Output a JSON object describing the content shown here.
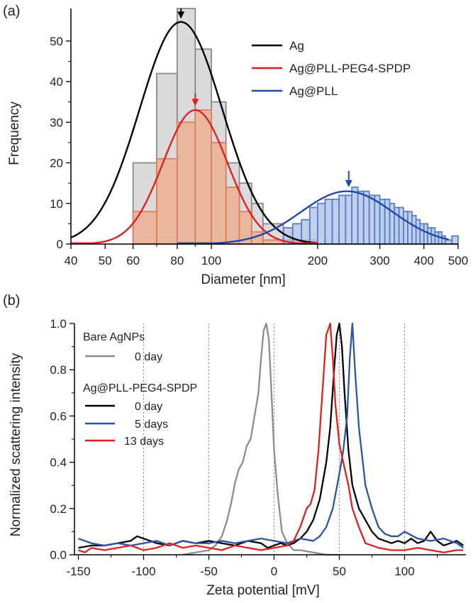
{
  "chart_data": [
    {
      "panel": "(a)",
      "type": "bar",
      "xscale": "log",
      "xlim": [
        40,
        500
      ],
      "ylim": [
        0,
        58
      ],
      "xlabel": "Diameter [nm]",
      "ylabel": "Frequency",
      "xticks": [
        40,
        50,
        60,
        80,
        100,
        200,
        300,
        400,
        500
      ],
      "xtick_labels": [
        "40",
        "50",
        "60",
        "80",
        "100",
        "200",
        "300",
        "400",
        "500"
      ],
      "yticks": [
        0,
        10,
        20,
        30,
        40,
        50
      ],
      "ytick_labels": [
        "0",
        "10",
        "20",
        "30",
        "40",
        "50"
      ],
      "legend_position": "top-right",
      "histograms": [
        {
          "name": "Ag",
          "color": "#8a8a8a",
          "fill": "#cfcfcf",
          "edges": [
            40,
            50,
            60,
            70,
            80,
            90,
            100,
            110,
            120,
            130,
            140,
            160,
            200
          ],
          "values": [
            0,
            0,
            20,
            42,
            58,
            48,
            35,
            20,
            15,
            10,
            5,
            1
          ]
        },
        {
          "name": "Ag@PLL-PEG4-SPDP",
          "color": "#d9825e",
          "fill": "#eea98a",
          "edges": [
            40,
            50,
            60,
            70,
            80,
            90,
            100,
            110,
            120,
            130,
            140,
            160,
            200
          ],
          "values": [
            0,
            0,
            8,
            21,
            30,
            33,
            25,
            14,
            8,
            3,
            1,
            1
          ]
        },
        {
          "name": "Ag@PLL",
          "color": "#5a7fc4",
          "fill": "#a9bfe6",
          "edges": [
            160,
            170,
            180,
            190,
            200,
            210,
            220,
            230,
            240,
            250,
            260,
            270,
            280,
            290,
            300,
            310,
            320,
            330,
            340,
            350,
            360,
            370,
            380,
            390,
            400,
            410,
            420,
            430,
            440,
            450,
            460,
            480,
            500
          ],
          "values": [
            4,
            5,
            6,
            9,
            10,
            11,
            11,
            12,
            12,
            14,
            13,
            13,
            12,
            12,
            11,
            11,
            10,
            9,
            9,
            8,
            8,
            7,
            6,
            5,
            5,
            4,
            4,
            3,
            3,
            2,
            1,
            2
          ]
        }
      ],
      "series": [
        {
          "name": "Ag",
          "color": "#000000",
          "fit": "lognormal",
          "mode": 82,
          "peak": 54.7,
          "sigma": 0.27,
          "x_range": [
            40,
            200
          ]
        },
        {
          "name": "Ag@PLL-PEG4-SPDP",
          "color": "#e02020",
          "fit": "lognormal",
          "mode": 90,
          "peak": 33,
          "sigma": 0.21,
          "x_range": [
            40,
            200
          ]
        },
        {
          "name": "Ag@PLL",
          "color": "#1f4aa8",
          "fit": "lognormal",
          "mode": 242,
          "peak": 13,
          "sigma": 0.3,
          "x_range": [
            80,
            470
          ]
        }
      ],
      "arrows": [
        {
          "x": 82,
          "y_top": 58,
          "y_tip": 55.5,
          "color": "#000000"
        },
        {
          "x": 90,
          "y_top": 37,
          "y_tip": 34,
          "color": "#e02020"
        },
        {
          "x": 245,
          "y_top": 18,
          "y_tip": 14,
          "color": "#1f4aa8"
        }
      ]
    },
    {
      "panel": "(b)",
      "type": "line",
      "xlim": [
        -153,
        147
      ],
      "ylim": [
        0,
        1.0
      ],
      "xlabel": "Zeta potential [mV]",
      "ylabel": "Normalized scattering intensity",
      "xticks": [
        -150,
        -100,
        -50,
        0,
        50,
        100
      ],
      "xtick_labels": [
        "-150",
        "-100",
        "-50",
        "0",
        "50",
        "100"
      ],
      "yticks": [
        0,
        0.2,
        0.4,
        0.6,
        0.8,
        1.0
      ],
      "ytick_labels": [
        "0.0",
        "0.2",
        "0.4",
        "0.6",
        "0.8",
        "1.0"
      ],
      "gridlines_x": [
        -100,
        -50,
        0,
        50,
        100
      ],
      "legend_position": "top-left",
      "legend_groups": [
        {
          "title": "Bare AgNPs",
          "entries": [
            "0 day"
          ]
        },
        {
          "title": "Ag@PLL-PEG4-SPDP",
          "entries": [
            "0 day",
            "5 days",
            "13 days"
          ]
        }
      ],
      "series": [
        {
          "name": "Bare AgNPs 0 day",
          "label": "0 day",
          "color": "#8c8c8c",
          "x": [
            -70,
            -60,
            -50,
            -45,
            -40,
            -36,
            -33,
            -30,
            -27,
            -24,
            -21,
            -18,
            -15,
            -12,
            -10,
            -8,
            -6,
            -4,
            -2,
            0,
            3,
            6,
            10,
            15,
            20,
            30,
            40,
            50
          ],
          "y": [
            0.0,
            0.01,
            0.02,
            0.04,
            0.08,
            0.15,
            0.22,
            0.31,
            0.37,
            0.4,
            0.47,
            0.5,
            0.6,
            0.7,
            0.85,
            0.97,
            1.0,
            0.93,
            0.7,
            0.45,
            0.25,
            0.1,
            0.05,
            0.02,
            0.02,
            0.01,
            0.0,
            0.0
          ]
        },
        {
          "name": "Ag@PLL-PEG4-SPDP 0 day",
          "label": "0 day",
          "color": "#000000",
          "x": [
            -150,
            -140,
            -130,
            -120,
            -110,
            -105,
            -100,
            -95,
            -90,
            -80,
            -70,
            -60,
            -50,
            -40,
            -30,
            -20,
            -10,
            -5,
            0,
            5,
            10,
            15,
            20,
            25,
            30,
            35,
            40,
            43,
            46,
            48,
            50,
            52,
            54,
            57,
            60,
            65,
            70,
            75,
            80,
            85,
            90,
            95,
            100,
            105,
            110,
            115,
            120,
            125,
            130,
            135,
            140,
            145
          ],
          "y": [
            0.03,
            0.04,
            0.04,
            0.05,
            0.06,
            0.08,
            0.07,
            0.06,
            0.05,
            0.04,
            0.06,
            0.05,
            0.06,
            0.05,
            0.04,
            0.06,
            0.05,
            0.03,
            0.04,
            0.05,
            0.04,
            0.05,
            0.07,
            0.1,
            0.15,
            0.24,
            0.4,
            0.55,
            0.8,
            0.95,
            1.0,
            0.9,
            0.7,
            0.45,
            0.3,
            0.2,
            0.15,
            0.1,
            0.07,
            0.06,
            0.05,
            0.06,
            0.05,
            0.07,
            0.05,
            0.06,
            0.1,
            0.06,
            0.04,
            0.05,
            0.06,
            0.04
          ]
        },
        {
          "name": "Ag@PLL-PEG4-SPDP 5 days",
          "label": "5 days",
          "color": "#2c54a6",
          "x": [
            -150,
            -140,
            -130,
            -120,
            -110,
            -100,
            -90,
            -80,
            -70,
            -60,
            -50,
            -40,
            -30,
            -20,
            -10,
            0,
            10,
            20,
            30,
            35,
            40,
            45,
            50,
            53,
            56,
            58,
            60,
            62,
            65,
            70,
            75,
            80,
            85,
            90,
            95,
            100,
            110,
            120,
            130,
            140,
            145
          ],
          "y": [
            0.07,
            0.05,
            0.04,
            0.05,
            0.04,
            0.05,
            0.06,
            0.04,
            0.06,
            0.05,
            0.05,
            0.06,
            0.05,
            0.06,
            0.07,
            0.06,
            0.05,
            0.07,
            0.06,
            0.08,
            0.12,
            0.2,
            0.35,
            0.45,
            0.6,
            0.85,
            1.0,
            0.8,
            0.55,
            0.3,
            0.2,
            0.12,
            0.09,
            0.08,
            0.08,
            0.1,
            0.07,
            0.06,
            0.07,
            0.05,
            0.03
          ]
        },
        {
          "name": "Ag@PLL-PEG4-SPDP 13 days",
          "label": "13 days",
          "color": "#e02020",
          "x": [
            -150,
            -145,
            -140,
            -130,
            -120,
            -110,
            -100,
            -90,
            -80,
            -70,
            -60,
            -50,
            -40,
            -30,
            -20,
            -10,
            0,
            10,
            15,
            20,
            25,
            28,
            31,
            34,
            37,
            40,
            43,
            45,
            47,
            50,
            53,
            57,
            60,
            65,
            70,
            80,
            90,
            100,
            110,
            120,
            130,
            140,
            145
          ],
          "y": [
            0.02,
            0.01,
            0.03,
            0.02,
            0.03,
            0.04,
            0.02,
            0.03,
            0.05,
            0.03,
            0.04,
            0.03,
            0.02,
            0.04,
            0.03,
            0.02,
            0.03,
            0.04,
            0.06,
            0.12,
            0.2,
            0.22,
            0.28,
            0.45,
            0.7,
            0.95,
            1.0,
            0.85,
            0.65,
            0.48,
            0.4,
            0.3,
            0.2,
            0.12,
            0.05,
            0.03,
            0.02,
            0.02,
            0.03,
            0.02,
            0.01,
            0.02,
            0.02
          ]
        }
      ]
    }
  ],
  "panel_labels": {
    "a": "(a)",
    "b": "(b)"
  },
  "legend_a": {
    "entries": [
      "Ag",
      "Ag@PLL-PEG4-SPDP",
      "Ag@PLL"
    ]
  },
  "legend_b": {
    "group1_title": "Bare AgNPs",
    "group1_entry": "0 day",
    "group2_title": "Ag@PLL-PEG4-SPDP",
    "group2_entries": [
      "0 day",
      "5 days",
      "13 days"
    ]
  }
}
